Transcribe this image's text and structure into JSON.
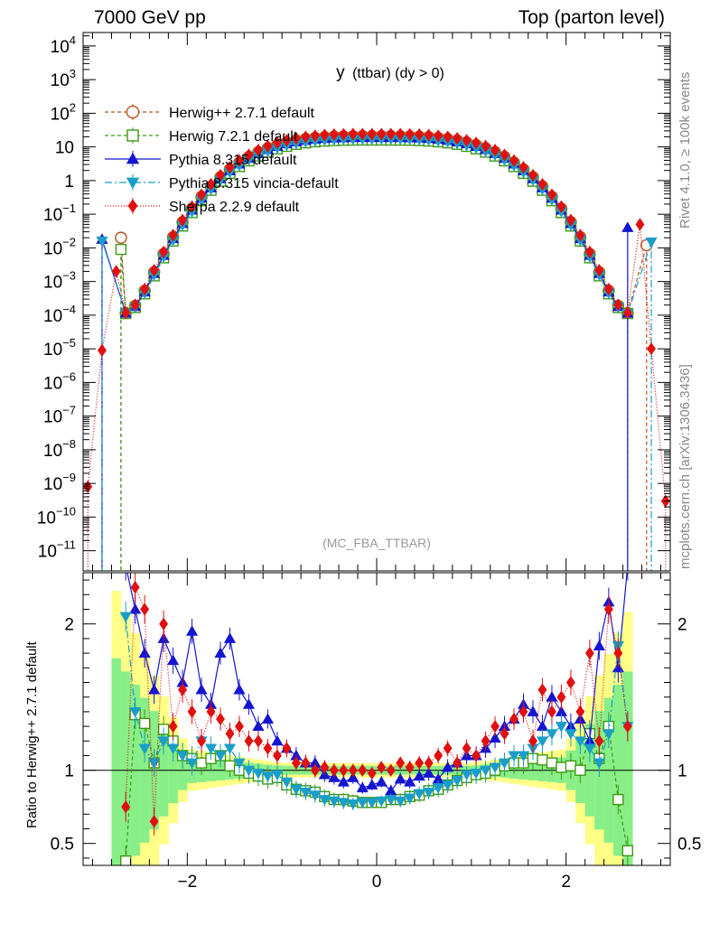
{
  "header": {
    "left": "7000 GeV pp",
    "right": "Top (parton level)"
  },
  "side_labels": {
    "rivet": "Rivet 4.1.0, ≥ 100k events",
    "mcplots": "mcplots.cern.ch [arXiv:1306.3436]"
  },
  "chart_data": [
    {
      "type": "line",
      "panel": "main",
      "title": "y (ttbar) (dy > 0)",
      "title_main": "y",
      "title_sub": "(ttbar) (dy > 0)",
      "watermark": "(MC_FBA_TTBAR)",
      "yscale": "log",
      "xlim": [
        -3.1,
        3.1
      ],
      "ylim_log10": [
        -11.6,
        4.4
      ],
      "x_ticks": [
        -2,
        0,
        2
      ],
      "y_tick_labels": [
        {
          "base": "10",
          "exp": "4",
          "v": 4
        },
        {
          "base": "10",
          "exp": "3",
          "v": 3
        },
        {
          "base": "10",
          "exp": "2",
          "v": 2
        },
        {
          "base": "10",
          "exp": "",
          "v": 1
        },
        {
          "base": "1",
          "exp": "",
          "v": 0
        },
        {
          "base": "10",
          "exp": "−1",
          "v": -1
        },
        {
          "base": "10",
          "exp": "−2",
          "v": -2
        },
        {
          "base": "10",
          "exp": "−3",
          "v": -3
        },
        {
          "base": "10",
          "exp": "−4",
          "v": -4
        },
        {
          "base": "10",
          "exp": "−5",
          "v": -5
        },
        {
          "base": "10",
          "exp": "−6",
          "v": -6
        },
        {
          "base": "10",
          "exp": "−7",
          "v": -7
        },
        {
          "base": "10",
          "exp": "−8",
          "v": -8
        },
        {
          "base": "10",
          "exp": "−9",
          "v": -9
        },
        {
          "base": "10",
          "exp": "−10",
          "v": -10
        },
        {
          "base": "10",
          "exp": "−11",
          "v": -11
        }
      ],
      "legend": [
        {
          "name": "Herwig++ 2.7.1 default",
          "color": "#b8501c",
          "marker": "circle-open",
          "dash": "4,3"
        },
        {
          "name": "Herwig 7.2.1 default",
          "color": "#3c9a12",
          "marker": "square-open",
          "dash": "4,3"
        },
        {
          "name": "Pythia 8.315 default",
          "color": "#1515d0",
          "marker": "triangle-up",
          "dash": ""
        },
        {
          "name": "Pythia 8.315 vincia-default",
          "color": "#1a9ec8",
          "marker": "triangle-down",
          "dash": "8,3,2,3"
        },
        {
          "name": "Sherpa 2.2.9 default",
          "color": "#e01010",
          "marker": "diamond",
          "dash": "1,2"
        }
      ],
      "series": [
        {
          "name": "Herwig++ 2.7.1 default",
          "peak": 21,
          "width": 1.18,
          "edge_left": [
            [
              -2.7,
              0.02
            ]
          ],
          "edge_right": [
            [
              2.85,
              0.012
            ]
          ]
        },
        {
          "name": "Herwig 7.2.1 default",
          "peak": 16,
          "width": 1.18,
          "edge_left": [
            [
              -2.7,
              0.009
            ]
          ],
          "edge_right": []
        },
        {
          "name": "Pythia 8.315 default",
          "peak": 19,
          "width": 1.18,
          "edge_left": [
            [
              -2.9,
              0.018
            ]
          ],
          "edge_right": [
            [
              2.65,
              0.04
            ]
          ]
        },
        {
          "name": "Pythia 8.315 vincia-default",
          "peak": 17,
          "width": 1.18,
          "edge_left": [
            [
              -2.9,
              0.016
            ]
          ],
          "edge_right": [
            [
              2.9,
              0.015
            ]
          ]
        },
        {
          "name": "Sherpa 2.2.9 default",
          "peak": 24,
          "width": 1.18,
          "edge_left": [
            [
              -3.05,
              8e-10
            ],
            [
              -2.9,
              9e-06
            ],
            [
              -2.75,
              0.002
            ]
          ],
          "edge_right": [
            [
              2.78,
              0.05
            ],
            [
              2.9,
              1e-05
            ],
            [
              3.05,
              3e-10
            ]
          ]
        }
      ]
    },
    {
      "type": "line",
      "panel": "ratio",
      "ylabel": "Ratio to Herwig++ 2.7.1 default",
      "ylim": [
        0.35,
        2.35
      ],
      "y_ticks": [
        {
          "v": 0.5,
          "label": "0.5"
        },
        {
          "v": 1,
          "label": "1"
        },
        {
          "v": 2,
          "label": "2"
        }
      ],
      "x_tick_labels": [
        {
          "v": -2,
          "label": "−2"
        },
        {
          "v": 0,
          "label": "0"
        },
        {
          "v": 2,
          "label": "2"
        }
      ],
      "band": {
        "center": 1.0,
        "yellow_halfwidth": 0.05,
        "green_halfwidth": 0.03
      },
      "series": [
        {
          "name": "Herwig 7.2.1 default",
          "x": [
            -2.65,
            -2.55,
            -2.45,
            -2.35,
            -2.25,
            -2.15,
            -2.05,
            -1.95,
            -1.85,
            -1.75,
            -1.65,
            -1.55,
            -1.45,
            -1.35,
            -1.25,
            -1.15,
            -1.05,
            -0.95,
            -0.85,
            -0.75,
            -0.65,
            -0.55,
            -0.45,
            -0.35,
            -0.25,
            -0.15,
            -0.05,
            0.05,
            0.15,
            0.25,
            0.35,
            0.45,
            0.55,
            0.65,
            0.75,
            0.85,
            0.95,
            1.05,
            1.15,
            1.25,
            1.35,
            1.45,
            1.55,
            1.65,
            1.75,
            1.85,
            1.95,
            2.05,
            2.15,
            2.25,
            2.35,
            2.45,
            2.55,
            2.65
          ],
          "y": [
            0.38,
            1.38,
            1.32,
            1.05,
            1.28,
            1.2,
            1.1,
            1.08,
            1.05,
            1.08,
            1.1,
            1.03,
            1.0,
            0.98,
            0.96,
            0.94,
            0.95,
            0.9,
            0.87,
            0.86,
            0.85,
            0.82,
            0.8,
            0.8,
            0.79,
            0.78,
            0.78,
            0.78,
            0.8,
            0.8,
            0.82,
            0.83,
            0.86,
            0.87,
            0.9,
            0.93,
            0.95,
            0.97,
            0.98,
            1.0,
            1.03,
            1.05,
            1.05,
            1.08,
            1.07,
            1.05,
            1.02,
            1.03,
            1.0,
            1.25,
            1.08,
            1.3,
            0.8,
            0.45
          ]
        },
        {
          "name": "Pythia 8.315 default",
          "x": [
            -2.65,
            -2.55,
            -2.45,
            -2.35,
            -2.25,
            -2.15,
            -2.05,
            -1.95,
            -1.85,
            -1.75,
            -1.65,
            -1.55,
            -1.45,
            -1.35,
            -1.25,
            -1.15,
            -1.05,
            -0.95,
            -0.85,
            -0.75,
            -0.65,
            -0.55,
            -0.45,
            -0.35,
            -0.25,
            -0.15,
            -0.05,
            0.05,
            0.15,
            0.25,
            0.35,
            0.45,
            0.55,
            0.65,
            0.75,
            0.85,
            0.95,
            1.05,
            1.15,
            1.25,
            1.35,
            1.45,
            1.55,
            1.65,
            1.75,
            1.85,
            1.95,
            2.05,
            2.15,
            2.25,
            2.35,
            2.45,
            2.55,
            2.65
          ],
          "y": [
            2.4,
            2.1,
            1.8,
            1.55,
            1.9,
            1.75,
            1.6,
            1.95,
            1.55,
            1.45,
            1.8,
            1.9,
            1.55,
            1.45,
            1.3,
            1.35,
            1.2,
            1.15,
            1.1,
            1.05,
            1.05,
            0.97,
            0.95,
            0.92,
            0.95,
            0.88,
            0.9,
            0.92,
            0.86,
            0.94,
            0.92,
            0.96,
            0.98,
            0.94,
            1.02,
            1.05,
            1.1,
            1.1,
            1.15,
            1.22,
            1.3,
            1.35,
            1.45,
            1.4,
            1.3,
            1.5,
            1.4,
            1.3,
            1.35,
            1.2,
            1.85,
            2.15,
            1.7,
            2.4
          ]
        },
        {
          "name": "Pythia 8.315 vincia-default",
          "x": [
            -2.65,
            -2.55,
            -2.45,
            -2.35,
            -2.25,
            -2.15,
            -2.05,
            -1.95,
            -1.85,
            -1.75,
            -1.65,
            -1.55,
            -1.45,
            -1.35,
            -1.25,
            -1.15,
            -1.05,
            -0.95,
            -0.85,
            -0.75,
            -0.65,
            -0.55,
            -0.45,
            -0.35,
            -0.25,
            -0.15,
            -0.05,
            0.05,
            0.15,
            0.25,
            0.35,
            0.45,
            0.55,
            0.65,
            0.75,
            0.85,
            0.95,
            1.05,
            1.15,
            1.25,
            1.35,
            1.45,
            1.55,
            1.65,
            1.75,
            1.85,
            1.95,
            2.05,
            2.15,
            2.25,
            2.35,
            2.45,
            2.55,
            2.65
          ],
          "y": [
            2.05,
            1.4,
            1.15,
            1.05,
            1.2,
            1.15,
            1.1,
            1.05,
            1.2,
            1.15,
            1.1,
            1.15,
            1.05,
            1.0,
            0.98,
            0.96,
            0.97,
            0.92,
            0.87,
            0.85,
            0.83,
            0.8,
            0.79,
            0.78,
            0.77,
            0.78,
            0.78,
            0.79,
            0.8,
            0.79,
            0.81,
            0.84,
            0.85,
            0.88,
            0.9,
            0.93,
            0.97,
            0.98,
            1.0,
            1.02,
            1.05,
            1.1,
            1.1,
            1.15,
            1.2,
            1.25,
            1.3,
            1.25,
            1.2,
            1.15,
            1.05,
            1.25,
            1.85,
            1.3
          ]
        },
        {
          "name": "Sherpa 2.2.9 default",
          "x": [
            -2.65,
            -2.55,
            -2.45,
            -2.35,
            -2.25,
            -2.15,
            -2.05,
            -1.95,
            -1.85,
            -1.75,
            -1.65,
            -1.55,
            -1.45,
            -1.35,
            -1.25,
            -1.15,
            -1.05,
            -0.95,
            -0.85,
            -0.75,
            -0.65,
            -0.55,
            -0.45,
            -0.35,
            -0.25,
            -0.15,
            -0.05,
            0.05,
            0.15,
            0.25,
            0.35,
            0.45,
            0.55,
            0.65,
            0.75,
            0.85,
            0.95,
            1.05,
            1.15,
            1.25,
            1.35,
            1.45,
            1.55,
            1.65,
            1.75,
            1.85,
            1.95,
            2.05,
            2.15,
            2.25,
            2.35,
            2.45,
            2.55,
            2.65
          ],
          "y": [
            0.75,
            2.25,
            2.1,
            0.65,
            2.0,
            1.3,
            1.55,
            1.4,
            1.2,
            1.4,
            1.35,
            1.25,
            1.3,
            1.2,
            1.2,
            1.15,
            1.1,
            1.15,
            1.05,
            1.05,
            1.0,
            1.02,
            1.0,
            1.0,
            1.0,
            1.0,
            0.98,
            1.02,
            1.0,
            1.05,
            1.02,
            1.05,
            1.05,
            1.1,
            1.15,
            1.05,
            1.15,
            1.1,
            1.2,
            1.3,
            1.25,
            1.35,
            1.4,
            1.2,
            1.55,
            1.4,
            1.5,
            1.6,
            1.4,
            1.8,
            1.2,
            2.1,
            1.8,
            1.3
          ]
        }
      ]
    }
  ]
}
